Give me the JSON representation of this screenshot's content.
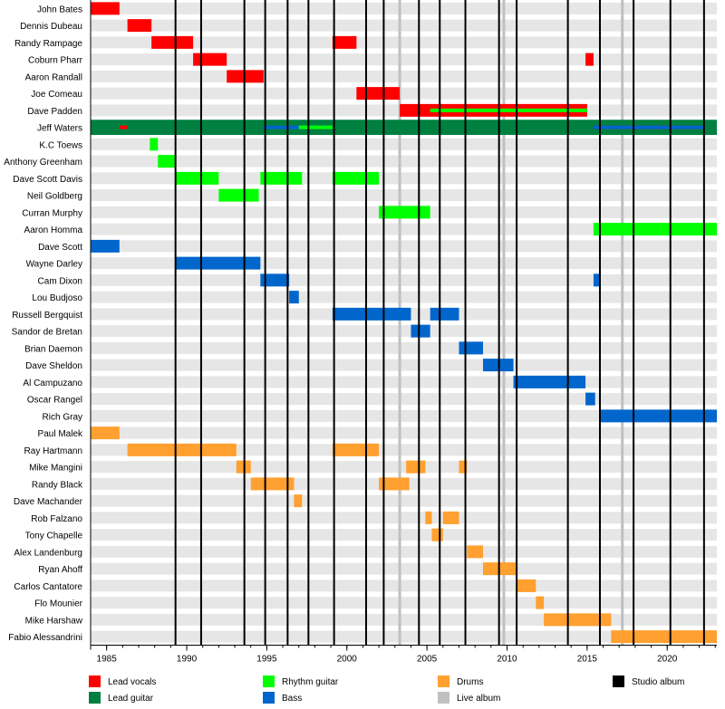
{
  "chart_data": {
    "type": "timeline",
    "title": "",
    "xlabel": "",
    "ylabel": "",
    "x_range": [
      1984.0,
      2023.1
    ],
    "x_ticks": [
      1985,
      1990,
      1995,
      2000,
      2005,
      2010,
      2015,
      2020
    ],
    "grid": true,
    "roles": {
      "vocals": {
        "label": "Lead vocals",
        "color": "#ff0000"
      },
      "lead": {
        "label": "Lead guitar",
        "color": "#008040"
      },
      "rhythm": {
        "label": "Rhythm guitar",
        "color": "#00ff00"
      },
      "bass": {
        "label": "Bass",
        "color": "#0066cc"
      },
      "drums": {
        "label": "Drums",
        "color": "#ffa030"
      },
      "live": {
        "label": "Live album",
        "color": "#c0c0c0"
      },
      "studio": {
        "label": "Studio album",
        "color": "#000000"
      }
    },
    "legend_order": [
      "vocals",
      "lead",
      "rhythm",
      "bass",
      "drums",
      "live",
      "studio"
    ],
    "studio_albums": [
      1989.3,
      1990.9,
      1993.6,
      1994.9,
      1996.3,
      1997.6,
      1999.2,
      2001.2,
      2002.3,
      2004.5,
      2005.8,
      2007.4,
      2009.5,
      2010.6,
      2013.8,
      2015.8,
      2017.9,
      2020.2,
      2022.3
    ],
    "live_albums": [
      2003.3,
      2009.8,
      2017.2
    ],
    "members": [
      {
        "name": "John Bates",
        "bars": [
          {
            "role": "vocals",
            "start": 1984.0,
            "end": 1985.8
          }
        ]
      },
      {
        "name": "Dennis Dubeau",
        "bars": [
          {
            "role": "vocals",
            "start": 1986.3,
            "end": 1987.8
          }
        ]
      },
      {
        "name": "Randy Rampage",
        "bars": [
          {
            "role": "vocals",
            "start": 1987.8,
            "end": 1990.4
          },
          {
            "role": "vocals",
            "start": 1999.1,
            "end": 2000.6
          }
        ]
      },
      {
        "name": "Coburn Pharr",
        "bars": [
          {
            "role": "vocals",
            "start": 1990.4,
            "end": 1992.5
          },
          {
            "role": "vocals",
            "start": 2014.9,
            "end": 2015.4
          }
        ]
      },
      {
        "name": "Aaron Randall",
        "bars": [
          {
            "role": "vocals",
            "start": 1992.5,
            "end": 1994.8
          }
        ]
      },
      {
        "name": "Joe Comeau",
        "bars": [
          {
            "role": "vocals",
            "start": 2000.6,
            "end": 2003.3
          }
        ]
      },
      {
        "name": "Dave Padden",
        "bars": [
          {
            "role": "vocals",
            "start": 2003.3,
            "end": 2015.0
          },
          {
            "role": "rhythm",
            "start": 2005.2,
            "end": 2015.0
          }
        ]
      },
      {
        "name": "Jeff Waters",
        "full": "lead",
        "bars": [
          {
            "role": "vocals",
            "start": 1985.8,
            "end": 1986.3
          },
          {
            "role": "bass",
            "start": 1994.8,
            "end": 1999.1
          },
          {
            "role": "rhythm",
            "start": 1997.0,
            "end": 1999.1
          },
          {
            "role": "vocals",
            "start": 2015.4,
            "end": 2022.3
          },
          {
            "role": "bass",
            "start": 2015.4,
            "end": 2022.3
          }
        ]
      },
      {
        "name": "K.C Toews",
        "bars": [
          {
            "role": "rhythm",
            "start": 1987.7,
            "end": 1988.2
          }
        ]
      },
      {
        "name": "Anthony Greenham",
        "bars": [
          {
            "role": "rhythm",
            "start": 1988.2,
            "end": 1989.3
          }
        ]
      },
      {
        "name": "Dave Scott Davis",
        "bars": [
          {
            "role": "rhythm",
            "start": 1989.3,
            "end": 1992.0
          },
          {
            "role": "rhythm",
            "start": 1994.6,
            "end": 1997.2
          },
          {
            "role": "rhythm",
            "start": 1999.1,
            "end": 2002.0
          }
        ]
      },
      {
        "name": "Neil Goldberg",
        "bars": [
          {
            "role": "rhythm",
            "start": 1992.0,
            "end": 1994.5
          }
        ]
      },
      {
        "name": "Curran Murphy",
        "bars": [
          {
            "role": "rhythm",
            "start": 2002.0,
            "end": 2005.2
          }
        ]
      },
      {
        "name": "Aaron Homma",
        "bars": [
          {
            "role": "rhythm",
            "start": 2015.4,
            "end": 2023.1
          }
        ]
      },
      {
        "name": "Dave Scott",
        "bars": [
          {
            "role": "bass",
            "start": 1984.0,
            "end": 1985.8
          }
        ]
      },
      {
        "name": "Wayne Darley",
        "bars": [
          {
            "role": "bass",
            "start": 1989.3,
            "end": 1994.6
          }
        ]
      },
      {
        "name": "Cam Dixon",
        "bars": [
          {
            "role": "bass",
            "start": 1994.6,
            "end": 1996.4
          },
          {
            "role": "bass",
            "start": 2015.4,
            "end": 2015.8
          }
        ]
      },
      {
        "name": "Lou Budjoso",
        "bars": [
          {
            "role": "bass",
            "start": 1996.4,
            "end": 1997.0
          }
        ]
      },
      {
        "name": "Russell Bergquist",
        "bars": [
          {
            "role": "bass",
            "start": 1999.1,
            "end": 2004.0
          },
          {
            "role": "bass",
            "start": 2005.2,
            "end": 2007.0
          }
        ]
      },
      {
        "name": "Sandor de Bretan",
        "bars": [
          {
            "role": "bass",
            "start": 2004.0,
            "end": 2005.2
          }
        ]
      },
      {
        "name": "Brian Daemon",
        "bars": [
          {
            "role": "bass",
            "start": 2007.0,
            "end": 2008.5
          }
        ]
      },
      {
        "name": "Dave Sheldon",
        "bars": [
          {
            "role": "bass",
            "start": 2008.5,
            "end": 2010.4
          }
        ]
      },
      {
        "name": "Al Campuzano",
        "bars": [
          {
            "role": "bass",
            "start": 2010.4,
            "end": 2014.9
          }
        ]
      },
      {
        "name": "Oscar Rangel",
        "bars": [
          {
            "role": "bass",
            "start": 2014.9,
            "end": 2015.5
          }
        ]
      },
      {
        "name": "Rich Gray",
        "bars": [
          {
            "role": "bass",
            "start": 2015.8,
            "end": 2023.1
          }
        ]
      },
      {
        "name": "Paul Malek",
        "bars": [
          {
            "role": "drums",
            "start": 1984.0,
            "end": 1985.8
          }
        ]
      },
      {
        "name": "Ray Hartmann",
        "bars": [
          {
            "role": "drums",
            "start": 1986.3,
            "end": 1993.1
          },
          {
            "role": "drums",
            "start": 1999.1,
            "end": 2002.0
          }
        ]
      },
      {
        "name": "Mike Mangini",
        "bars": [
          {
            "role": "drums",
            "start": 1993.1,
            "end": 1994.0
          },
          {
            "role": "drums",
            "start": 2003.7,
            "end": 2004.9
          },
          {
            "role": "drums",
            "start": 2007.0,
            "end": 2007.5
          }
        ]
      },
      {
        "name": "Randy Black",
        "bars": [
          {
            "role": "drums",
            "start": 1994.0,
            "end": 1996.7
          },
          {
            "role": "drums",
            "start": 2002.0,
            "end": 2003.9
          }
        ]
      },
      {
        "name": "Dave Machander",
        "bars": [
          {
            "role": "drums",
            "start": 1996.7,
            "end": 1997.2
          }
        ]
      },
      {
        "name": "Rob Falzano",
        "bars": [
          {
            "role": "drums",
            "start": 2004.9,
            "end": 2005.3
          },
          {
            "role": "drums",
            "start": 2006.0,
            "end": 2007.0
          }
        ]
      },
      {
        "name": "Tony Chapelle",
        "bars": [
          {
            "role": "drums",
            "start": 2005.3,
            "end": 2006.0
          }
        ]
      },
      {
        "name": "Alex Landenburg",
        "bars": [
          {
            "role": "drums",
            "start": 2007.5,
            "end": 2008.5
          }
        ]
      },
      {
        "name": "Ryan Ahoff",
        "bars": [
          {
            "role": "drums",
            "start": 2008.5,
            "end": 2010.6
          }
        ]
      },
      {
        "name": "Carlos Cantatore",
        "bars": [
          {
            "role": "drums",
            "start": 2010.6,
            "end": 2011.8
          }
        ]
      },
      {
        "name": "Flo Mounier",
        "bars": [
          {
            "role": "drums",
            "start": 2011.8,
            "end": 2012.3
          }
        ]
      },
      {
        "name": "Mike Harshaw",
        "bars": [
          {
            "role": "drums",
            "start": 2012.3,
            "end": 2016.5
          }
        ]
      },
      {
        "name": "Fabio Alessandrini",
        "bars": [
          {
            "role": "drums",
            "start": 2016.5,
            "end": 2023.1
          }
        ]
      }
    ]
  }
}
